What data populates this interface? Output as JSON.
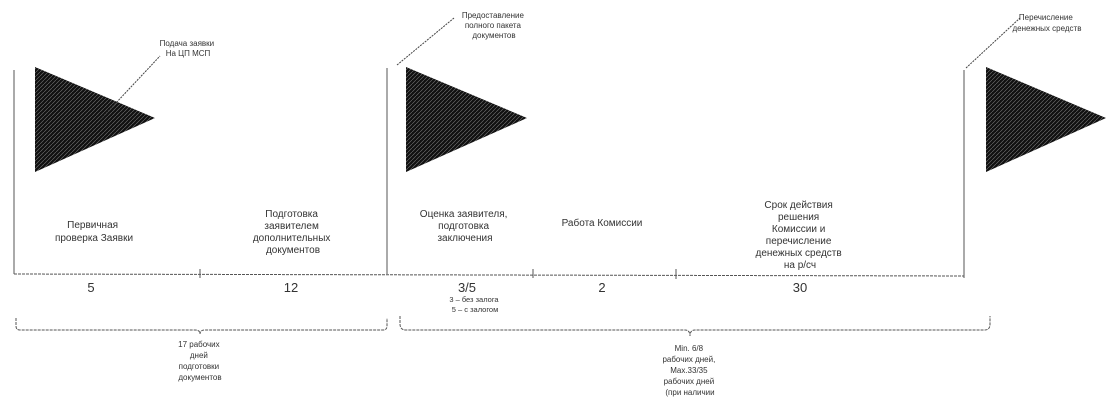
{
  "milestones": [
    {
      "id": "m1",
      "lines": [
        "Подача заявки",
        "На ЦП МСП"
      ]
    },
    {
      "id": "m2",
      "lines": [
        "Предоставление",
        "полного пакета",
        "документов"
      ]
    },
    {
      "id": "m3",
      "lines": [
        "Перечисление",
        "денежных средств"
      ]
    }
  ],
  "stages": [
    {
      "lines": [
        "Первичная",
        "проверка Заявки"
      ],
      "days": "5"
    },
    {
      "lines": [
        "Подготовка",
        "заявителем",
        "дополнительных",
        "документов"
      ],
      "days": "12"
    },
    {
      "lines": [
        "Оценка заявителя,",
        "подготовка",
        "заключения"
      ],
      "days": "3/5"
    },
    {
      "lines": [
        "Работа Комиссии"
      ],
      "days": "2"
    },
    {
      "lines": [
        "Срок действия",
        "решения",
        "Комиссии и",
        "перечисление",
        "денежных средств",
        "на р/сч"
      ],
      "days": "30"
    }
  ],
  "collateral_note": [
    "3 – без залога",
    "5 – с залогом"
  ],
  "brace_notes": [
    {
      "lines": [
        "17 рабочих",
        "дней",
        "подготовки",
        "документов"
      ]
    },
    {
      "lines": [
        "Min. 6/8",
        "рабочих дней,",
        "Max.33/35",
        "рабочих дней",
        "(при наличии"
      ]
    }
  ],
  "colors": {
    "triangle": "#1a1a1a",
    "line": "#555555",
    "text": "#333333"
  }
}
